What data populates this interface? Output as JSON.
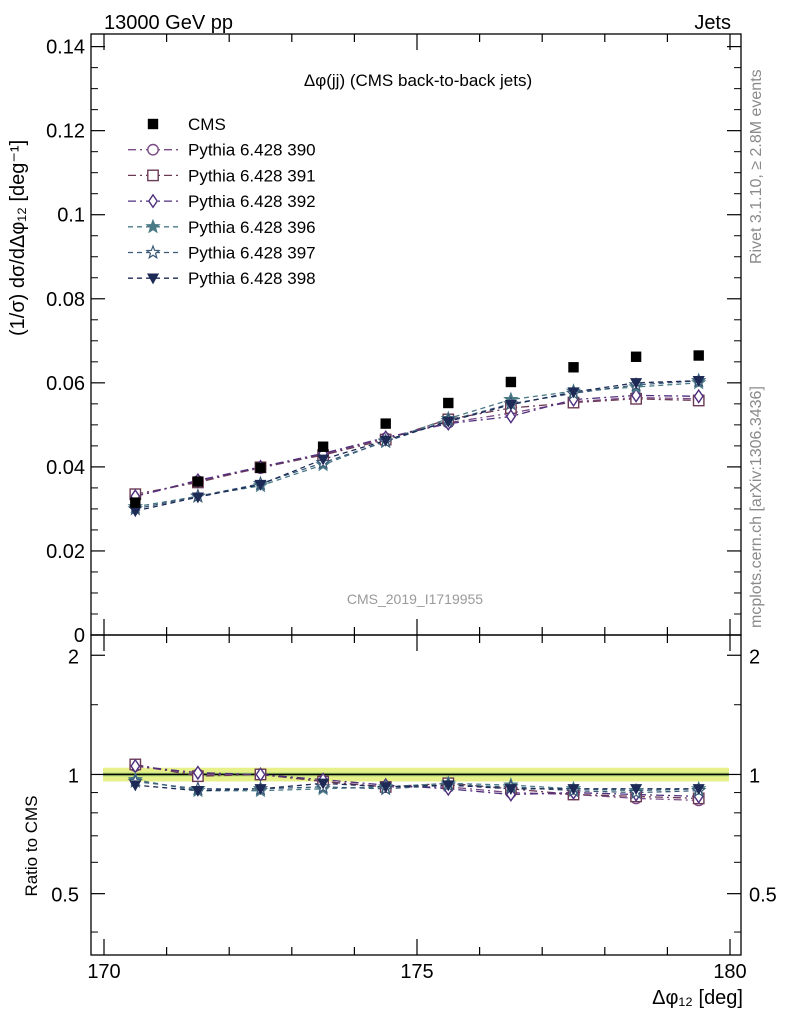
{
  "header": {
    "left": "13000 GeV pp",
    "right": "Jets"
  },
  "side_labels": {
    "rivet": "Rivet 3.1.10, ≥ 2.8M events",
    "mcplots": "mcplots.cern.ch [arXiv:1306.3436]"
  },
  "watermark": "CMS_2019_I1719955",
  "chart_data": {
    "type": "line",
    "title": "Δφ(jj) (CMS back-to-back jets)",
    "x": [
      170.5,
      171.5,
      172.5,
      173.5,
      174.5,
      175.5,
      176.5,
      177.5,
      178.5,
      179.5
    ],
    "xlim": [
      170,
      180
    ],
    "x_ticks": [
      "170",
      "175",
      "180"
    ],
    "xlabel": "Δφ₁₂ [deg]",
    "ylabel": "(1/σ) dσ/dΔφ₁₂ [deg⁻¹]",
    "ylim": [
      0,
      0.143
    ],
    "y_ticks": [
      "0",
      "0.02",
      "0.04",
      "0.06",
      "0.08",
      "0.1",
      "0.12",
      "0.14"
    ],
    "data": {
      "name": "CMS",
      "values": [
        0.0315,
        0.0365,
        0.0398,
        0.0448,
        0.0503,
        0.0552,
        0.0602,
        0.0637,
        0.0662,
        0.0665
      ]
    },
    "series": [
      {
        "name": "Pythia 6.428 390",
        "color": "#7a4b86",
        "marker": "circle-open",
        "dash": "dashdot",
        "values": [
          0.033,
          0.0366,
          0.0397,
          0.043,
          0.0468,
          0.0505,
          0.0528,
          0.0555,
          0.0565,
          0.0562
        ]
      },
      {
        "name": "Pythia 6.428 391",
        "color": "#6b3a55",
        "marker": "square-open",
        "dash": "dashdot",
        "values": [
          0.0335,
          0.0363,
          0.0399,
          0.0428,
          0.0465,
          0.0513,
          0.054,
          0.0553,
          0.0562,
          0.0558
        ]
      },
      {
        "name": "Pythia 6.428 392",
        "color": "#4f2f7f",
        "marker": "diamond-open",
        "dash": "dashdot",
        "values": [
          0.033,
          0.0368,
          0.04,
          0.0432,
          0.047,
          0.0503,
          0.052,
          0.056,
          0.057,
          0.0568
        ]
      },
      {
        "name": "Pythia 6.428 396",
        "color": "#4a7a86",
        "marker": "star-filled",
        "dash": "dashed",
        "values": [
          0.0305,
          0.033,
          0.0355,
          0.0405,
          0.0462,
          0.0515,
          0.056,
          0.058,
          0.059,
          0.06
        ]
      },
      {
        "name": "Pythia 6.428 397",
        "color": "#3a5a78",
        "marker": "star-open",
        "dash": "dashed",
        "values": [
          0.03,
          0.033,
          0.036,
          0.041,
          0.046,
          0.051,
          0.055,
          0.0575,
          0.0595,
          0.0605
        ]
      },
      {
        "name": "Pythia 6.428 398",
        "color": "#1c2a55",
        "marker": "triangle-down-filled",
        "dash": "dashed",
        "values": [
          0.0295,
          0.0328,
          0.0358,
          0.0418,
          0.0463,
          0.0508,
          0.0548,
          0.0578,
          0.06,
          0.0605
        ]
      }
    ],
    "ratio": {
      "ylabel": "Ratio to CMS",
      "ylim": [
        0.35,
        2.25
      ],
      "y_ticks": [
        "0.5",
        "1",
        "2"
      ],
      "band_color": "#e8f08a",
      "series": [
        {
          "name": "Pythia 6.428 390",
          "values": [
            1.05,
            1.0,
            1.0,
            0.96,
            0.93,
            0.93,
            0.9,
            0.89,
            0.87,
            0.86
          ]
        },
        {
          "name": "Pythia 6.428 391",
          "values": [
            1.06,
            0.99,
            1.0,
            0.96,
            0.93,
            0.95,
            0.92,
            0.89,
            0.88,
            0.87
          ]
        },
        {
          "name": "Pythia 6.428 392",
          "values": [
            1.05,
            1.01,
            1.0,
            0.97,
            0.94,
            0.92,
            0.89,
            0.9,
            0.89,
            0.88
          ]
        },
        {
          "name": "Pythia 6.428 396",
          "values": [
            0.97,
            0.91,
            0.91,
            0.92,
            0.93,
            0.95,
            0.94,
            0.92,
            0.91,
            0.92
          ]
        },
        {
          "name": "Pythia 6.428 397",
          "values": [
            0.96,
            0.92,
            0.92,
            0.93,
            0.92,
            0.94,
            0.93,
            0.91,
            0.9,
            0.91
          ]
        },
        {
          "name": "Pythia 6.428 398",
          "values": [
            0.94,
            0.91,
            0.92,
            0.95,
            0.93,
            0.94,
            0.92,
            0.92,
            0.92,
            0.92
          ]
        }
      ]
    }
  }
}
